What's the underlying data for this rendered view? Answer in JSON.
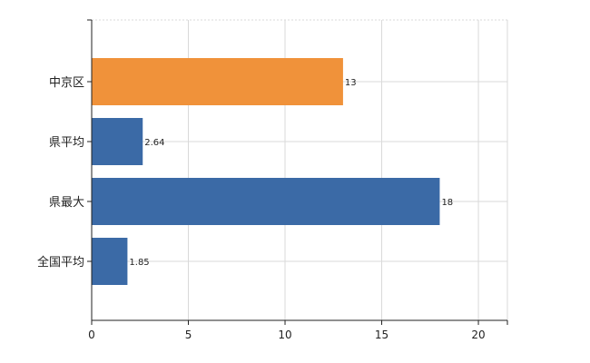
{
  "chart_data": {
    "type": "bar",
    "orientation": "horizontal",
    "categories": [
      "中京区",
      "県平均",
      "県最大",
      "全国平均"
    ],
    "values": [
      13,
      2.64,
      18,
      1.85
    ],
    "data_labels": [
      "13",
      "2.64",
      "18",
      "1.85"
    ],
    "bar_colors": [
      "#F0923A",
      "#3B6AA6",
      "#3B6AA6",
      "#3B6AA6"
    ],
    "title": "",
    "xlabel": "",
    "ylabel": "",
    "xlim": [
      0,
      21.5
    ],
    "xticks": [
      0,
      5,
      10,
      15,
      20
    ],
    "grid": true,
    "legend": "none"
  }
}
